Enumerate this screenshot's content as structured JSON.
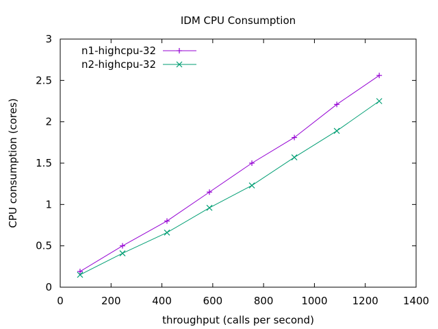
{
  "chart_data": {
    "type": "line",
    "title": "IDM CPU Consumption",
    "xlabel": "throughput (calls per second)",
    "ylabel": "CPU consumption (cores)",
    "xlim": [
      0,
      1400
    ],
    "ylim": [
      0,
      3
    ],
    "xticks": [
      0,
      200,
      400,
      600,
      800,
      1000,
      1200,
      1400
    ],
    "yticks": [
      0,
      0.5,
      1,
      1.5,
      2,
      2.5,
      3
    ],
    "xtick_labels": [
      "0",
      "200",
      "400",
      "600",
      "800",
      "1000",
      "1200",
      "1400"
    ],
    "ytick_labels": [
      "0",
      "0.5",
      "1",
      "1.5",
      "2",
      "2.5",
      "3"
    ],
    "grid": false,
    "legend_position": "top-left",
    "series": [
      {
        "name": "n1-highcpu-32",
        "color": "#9400d3",
        "marker": "plus",
        "x": [
          78,
          245,
          420,
          587,
          754,
          921,
          1088,
          1255
        ],
        "y": [
          0.19,
          0.5,
          0.8,
          1.15,
          1.5,
          1.81,
          2.21,
          2.56
        ]
      },
      {
        "name": "n2-highcpu-32",
        "color": "#009e73",
        "marker": "cross",
        "x": [
          78,
          245,
          420,
          587,
          754,
          921,
          1088,
          1255
        ],
        "y": [
          0.15,
          0.41,
          0.66,
          0.96,
          1.23,
          1.57,
          1.89,
          2.25
        ]
      }
    ]
  }
}
